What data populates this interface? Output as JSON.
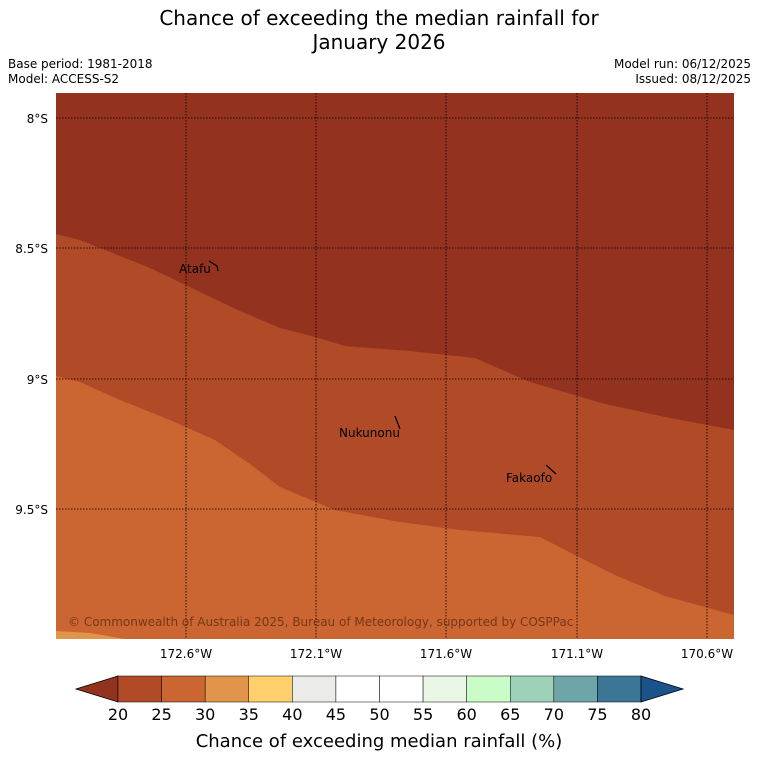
{
  "title_line1": "Chance of exceeding the median rainfall for",
  "title_line2": "January 2026",
  "base_period": "Base period: 1981-2018",
  "model": "Model: ACCESS-S2",
  "model_run": "Model run: 06/12/2025",
  "issued": "Issued: 08/12/2025",
  "map": {
    "lat_labels": [
      "8°S",
      "8.5°S",
      "9°S",
      "9.5°S"
    ],
    "lon_labels": [
      "172.6°W",
      "172.1°W",
      "171.6°W",
      "171.1°W",
      "170.6°W"
    ],
    "places": [
      {
        "id": "atafu",
        "name": "Atafu"
      },
      {
        "id": "nukunonu",
        "name": "Nukunonu"
      },
      {
        "id": "fakaofo",
        "name": "Fakaofo"
      }
    ],
    "copyright": "© Commonwealth of Australia 2025, Bureau of Meteorology, supported by COSPPac",
    "regions": [
      {
        "range": "< 20",
        "color": "#943220"
      },
      {
        "range": "20–25",
        "color": "#b04a27"
      },
      {
        "range": "25–30",
        "color": "#cb6532"
      },
      {
        "range": "30–35",
        "color": "#e0954a"
      }
    ]
  },
  "colorbar": {
    "ticks": [
      "20",
      "25",
      "30",
      "35",
      "40",
      "45",
      "50",
      "55",
      "60",
      "65",
      "70",
      "75",
      "80"
    ],
    "colors": [
      "#b04a27",
      "#cb6532",
      "#e0954a",
      "#fecf6a",
      "#ebebe8",
      "#ffffff",
      "#ffffff",
      "#e9f6e6",
      "#c9fcc6",
      "#9ed2b8",
      "#6ea5a8",
      "#3c7696"
    ],
    "under_color": "#943220",
    "over_color": "#1a528a",
    "label": "Chance of exceeding median rainfall (%)"
  }
}
